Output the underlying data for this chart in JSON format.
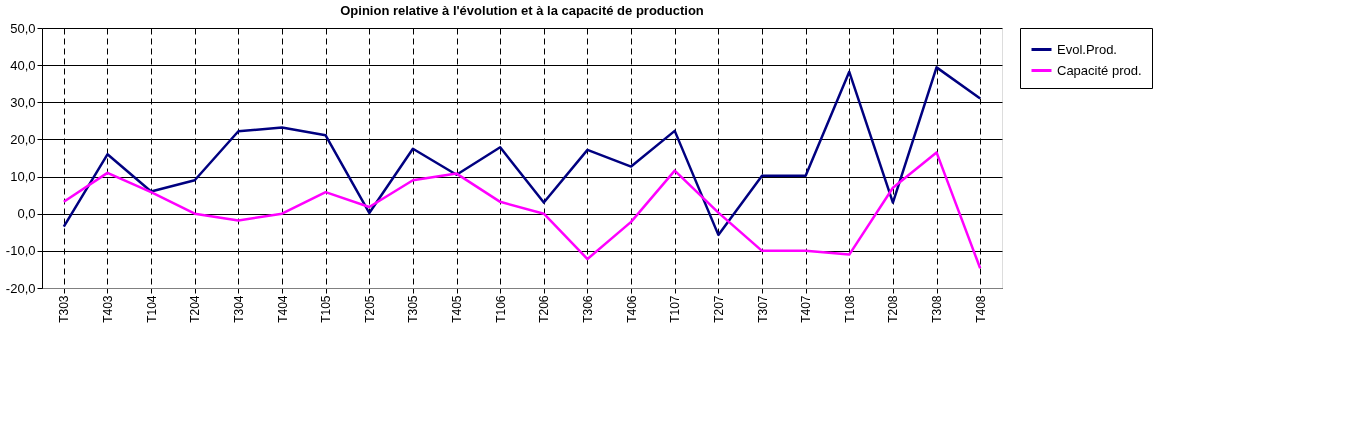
{
  "chart_data": {
    "type": "line",
    "title": "Opinion relative à l'évolution et à la capacité de production",
    "categories": [
      "T303",
      "T403",
      "T104",
      "T204",
      "T304",
      "T404",
      "T105",
      "T205",
      "T305",
      "T405",
      "T106",
      "T206",
      "T306",
      "T406",
      "T107",
      "T207",
      "T307",
      "T407",
      "T108",
      "T208",
      "T308",
      "T408"
    ],
    "series": [
      {
        "name": "Evol.Prod.",
        "color": "#000080",
        "values": [
          -3.5,
          16,
          6,
          9,
          22.2,
          23.2,
          21.1,
          0.2,
          17.5,
          10.5,
          17.9,
          3,
          17.2,
          12.7,
          22.3,
          -5.7,
          10.2,
          10.2,
          38.2,
          3,
          39.4,
          31
        ]
      },
      {
        "name": "Capacité prod.",
        "color": "#ff00ff",
        "values": [
          3.2,
          11,
          5.8,
          0,
          -1.8,
          0,
          5.8,
          1.8,
          9,
          10.8,
          3.2,
          0,
          -12.2,
          -2.2,
          11.6,
          0.3,
          -10,
          -10,
          -11,
          7,
          16.5,
          -14.7
        ]
      }
    ],
    "ylim": [
      -20,
      50
    ],
    "yticks": [
      {
        "value": -20,
        "label": "-20,0"
      },
      {
        "value": -10,
        "label": "-10,0"
      },
      {
        "value": 0,
        "label": "0,0"
      },
      {
        "value": 10,
        "label": "10,0"
      },
      {
        "value": 20,
        "label": "20,0"
      },
      {
        "value": 30,
        "label": "30,0"
      },
      {
        "value": 40,
        "label": "40,0"
      },
      {
        "value": 50,
        "label": "50,0"
      }
    ],
    "grid": true,
    "legend": "right",
    "marker": "none",
    "line_style": "solid"
  }
}
